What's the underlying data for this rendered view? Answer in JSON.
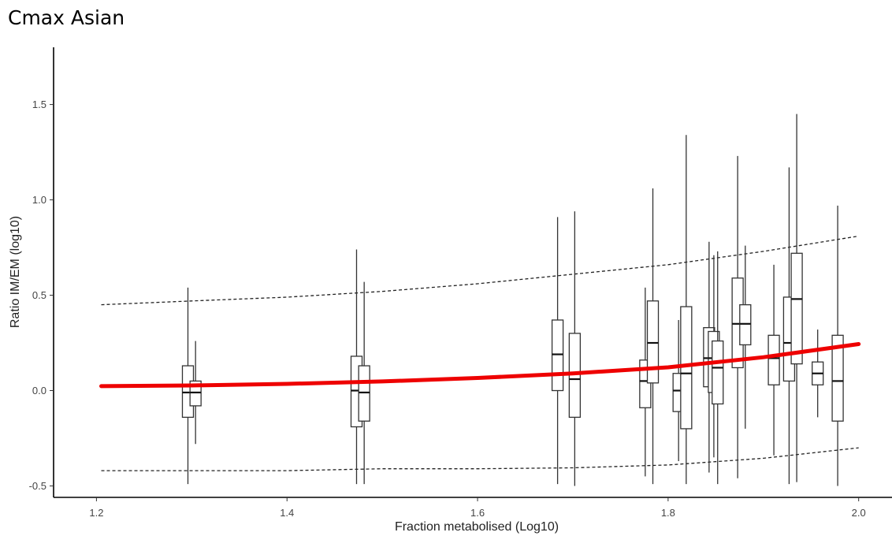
{
  "chart_data": {
    "type": "box",
    "title": "Cmax Asian",
    "xlabel": "Fraction metabolised (Log10)",
    "ylabel": "Ratio IM/EM (log10)",
    "xlim": [
      1.155,
      2.035
    ],
    "ylim": [
      -0.56,
      1.8
    ],
    "xticks": [
      "1.2",
      "1.4",
      "1.6",
      "1.8",
      "2.0"
    ],
    "yticks": [
      "-0.5",
      "0.0",
      "0.5",
      "1.0",
      "1.5"
    ],
    "grid": false,
    "legend": "none",
    "boxes": [
      {
        "x": 1.296,
        "min": -0.49,
        "q1": -0.14,
        "median": -0.01,
        "q3": 0.13,
        "max": 0.54
      },
      {
        "x": 1.304,
        "min": -0.28,
        "q1": -0.08,
        "median": -0.01,
        "q3": 0.05,
        "max": 0.26
      },
      {
        "x": 1.473,
        "min": -0.49,
        "q1": -0.19,
        "median": 0.0,
        "q3": 0.18,
        "max": 0.74
      },
      {
        "x": 1.481,
        "min": -0.49,
        "q1": -0.16,
        "median": -0.01,
        "q3": 0.13,
        "max": 0.57
      },
      {
        "x": 1.684,
        "min": -0.49,
        "q1": 0.0,
        "median": 0.19,
        "q3": 0.37,
        "max": 0.91
      },
      {
        "x": 1.702,
        "min": -0.5,
        "q1": -0.14,
        "median": 0.06,
        "q3": 0.3,
        "max": 0.94
      },
      {
        "x": 1.776,
        "min": -0.45,
        "q1": -0.09,
        "median": 0.05,
        "q3": 0.16,
        "max": 0.54
      },
      {
        "x": 1.784,
        "min": -0.49,
        "q1": 0.04,
        "median": 0.25,
        "q3": 0.47,
        "max": 1.06
      },
      {
        "x": 1.811,
        "min": -0.37,
        "q1": -0.11,
        "median": 0.0,
        "q3": 0.09,
        "max": 0.37
      },
      {
        "x": 1.819,
        "min": -0.49,
        "q1": -0.2,
        "median": 0.09,
        "q3": 0.44,
        "max": 1.34
      },
      {
        "x": 1.843,
        "min": -0.43,
        "q1": 0.02,
        "median": 0.17,
        "q3": 0.33,
        "max": 0.78
      },
      {
        "x": 1.848,
        "min": -0.35,
        "q1": -0.01,
        "median": 0.17,
        "q3": 0.31,
        "max": 0.71
      },
      {
        "x": 1.852,
        "min": -0.49,
        "q1": -0.07,
        "median": 0.12,
        "q3": 0.26,
        "max": 0.73
      },
      {
        "x": 1.873,
        "min": -0.46,
        "q1": 0.12,
        "median": 0.35,
        "q3": 0.59,
        "max": 1.23
      },
      {
        "x": 1.881,
        "min": -0.2,
        "q1": 0.24,
        "median": 0.35,
        "q3": 0.45,
        "max": 0.76
      },
      {
        "x": 1.911,
        "min": -0.34,
        "q1": 0.03,
        "median": 0.17,
        "q3": 0.29,
        "max": 0.66
      },
      {
        "x": 1.927,
        "min": -0.49,
        "q1": 0.05,
        "median": 0.25,
        "q3": 0.49,
        "max": 1.17
      },
      {
        "x": 1.935,
        "min": -0.48,
        "q1": 0.14,
        "median": 0.48,
        "q3": 0.72,
        "max": 1.45
      },
      {
        "x": 1.957,
        "min": -0.14,
        "q1": 0.03,
        "median": 0.09,
        "q3": 0.15,
        "max": 0.32
      },
      {
        "x": 1.978,
        "min": -0.5,
        "q1": -0.16,
        "median": 0.05,
        "q3": 0.29,
        "max": 0.97
      }
    ],
    "trend": {
      "x": [
        1.205,
        1.3,
        1.4,
        1.5,
        1.6,
        1.7,
        1.8,
        1.9,
        2.0
      ],
      "y": [
        0.023,
        0.027,
        0.035,
        0.048,
        0.066,
        0.09,
        0.122,
        0.175,
        0.244
      ]
    },
    "upper_band": {
      "x": [
        1.205,
        1.3,
        1.4,
        1.5,
        1.6,
        1.7,
        1.8,
        1.9,
        2.0
      ],
      "y": [
        0.45,
        0.47,
        0.49,
        0.52,
        0.56,
        0.61,
        0.66,
        0.73,
        0.81
      ]
    },
    "lower_band": {
      "x": [
        1.205,
        1.3,
        1.4,
        1.5,
        1.6,
        1.7,
        1.8,
        1.9,
        2.0
      ],
      "y": [
        -0.42,
        -0.42,
        -0.42,
        -0.41,
        -0.41,
        -0.405,
        -0.39,
        -0.355,
        -0.3
      ]
    },
    "colors": {
      "trend": "#ee0000",
      "box_stroke": "#333333",
      "band": "#222222",
      "axis": "#000000",
      "tick_text": "#444444"
    }
  }
}
